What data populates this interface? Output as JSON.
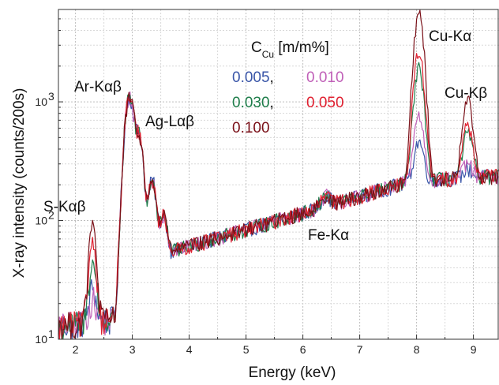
{
  "chart_data": {
    "type": "line",
    "xlabel": "Energy (keV)",
    "ylabel": "X-ray intensity (counts/200s)",
    "x_scale": "linear",
    "y_scale": "log",
    "xlim": [
      1.7,
      9.45
    ],
    "ylim": [
      10,
      6000
    ],
    "x_ticks": [
      "2",
      "3",
      "4",
      "5",
      "6",
      "7",
      "8",
      "9"
    ],
    "y_ticks": [
      "10",
      "10",
      "10"
    ],
    "y_tick_exponents": [
      "1",
      "2",
      "3"
    ],
    "grid": true,
    "legend": {
      "title_main": "C",
      "title_sub": "Cu",
      "title_unit": " [m/m%]",
      "separator": ","
    },
    "annotations": [
      {
        "key": "s",
        "text": "S-Kαβ"
      },
      {
        "key": "ar",
        "text": "Ar-Kαβ"
      },
      {
        "key": "ag",
        "text": "Ag-Lαβ"
      },
      {
        "key": "fe",
        "text": "Fe-Kα"
      },
      {
        "key": "cuka",
        "text": "Cu-Kα"
      },
      {
        "key": "cukb",
        "text": "Cu-Kβ"
      }
    ],
    "series": [
      {
        "name": "0.005",
        "color": "#3a56a8",
        "s_peak": 27,
        "cu_ka": 450,
        "cu_kb": 270
      },
      {
        "name": "0.010",
        "color": "#c060b8",
        "s_peak": 22,
        "cu_ka": 750,
        "cu_kb": 300
      },
      {
        "name": "0.030",
        "color": "#1e7d4a",
        "s_peak": 45,
        "cu_ka": 1850,
        "cu_kb": 540
      },
      {
        "name": "0.050",
        "color": "#e02030",
        "s_peak": 68,
        "cu_ka": 2600,
        "cu_kb": 650
      },
      {
        "name": "0.100",
        "color": "#7a1018",
        "s_peak": 92,
        "cu_ka": 5500,
        "cu_kb": 1050
      }
    ]
  }
}
